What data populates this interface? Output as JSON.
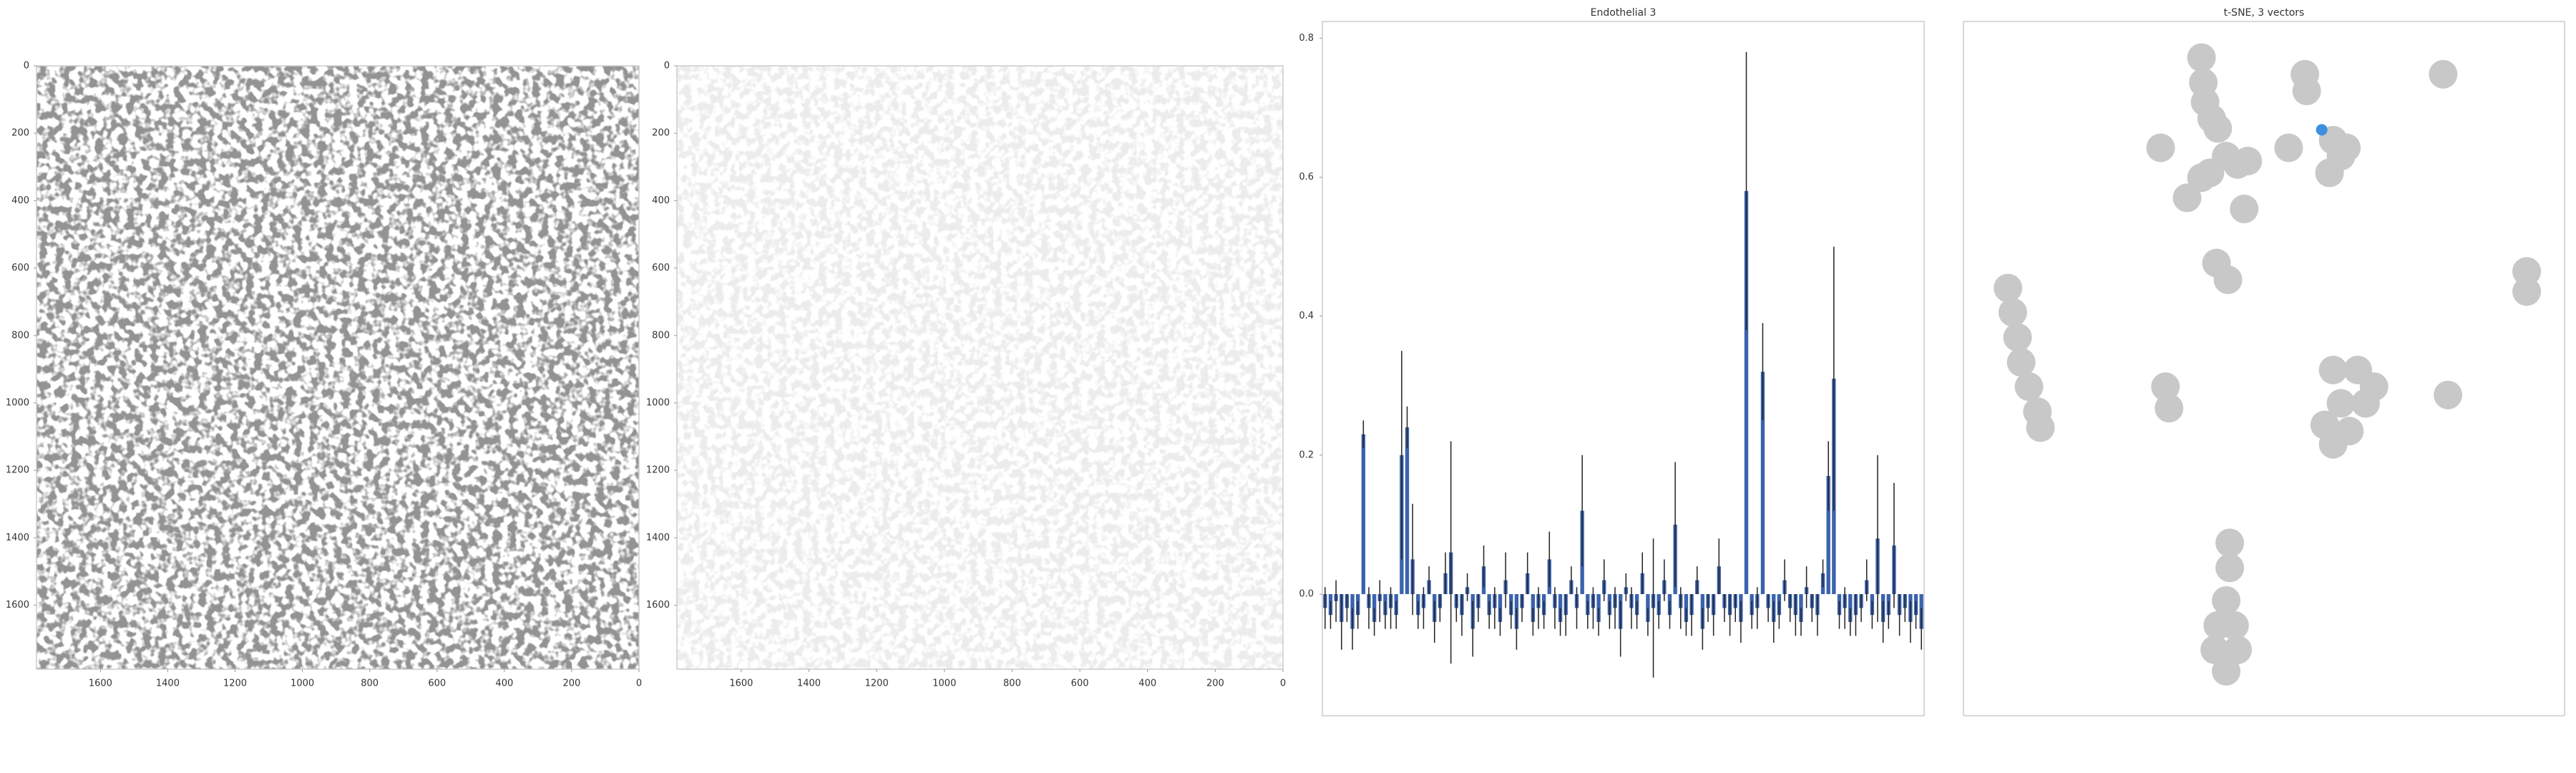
{
  "chart_data": [
    {
      "type": "image",
      "xlim": [
        1790,
        0
      ],
      "ylim": [
        1790,
        0
      ],
      "xticks": [
        1600,
        1400,
        1200,
        1000,
        800,
        600,
        400,
        200,
        0
      ],
      "yticks": [
        0,
        200,
        400,
        600,
        800,
        1000,
        1200,
        1400,
        1600
      ],
      "color": "#4a4a4a"
    },
    {
      "type": "image",
      "xlim": [
        1790,
        0
      ],
      "ylim": [
        1790,
        0
      ],
      "xticks": [
        1600,
        1400,
        1200,
        1000,
        800,
        600,
        400,
        200,
        0
      ],
      "yticks": [
        0,
        200,
        400,
        600,
        800,
        1000,
        1200,
        1400,
        1600
      ],
      "color": "#d6d6d6"
    },
    {
      "type": "bar",
      "title": "Endothelial 3",
      "categories": [
        null,
        null,
        null,
        null,
        null,
        null,
        null,
        null,
        null,
        null,
        null,
        null,
        null,
        null,
        null,
        null,
        null,
        null,
        null,
        null,
        null,
        null,
        null,
        null,
        null,
        null,
        null,
        null,
        null,
        null,
        null,
        null,
        null,
        null,
        null,
        null,
        null,
        null,
        null,
        null,
        null,
        null,
        null,
        null,
        null,
        null,
        null,
        null,
        null,
        null,
        null,
        null,
        null,
        null,
        null,
        null,
        null,
        null,
        null,
        null,
        null,
        null,
        null,
        null,
        null,
        null,
        null,
        null,
        null,
        null,
        null,
        null,
        null,
        null,
        null,
        null,
        null,
        null,
        null,
        null,
        null,
        null,
        null,
        null,
        null,
        null,
        null,
        null,
        null,
        null,
        null,
        null,
        null,
        null,
        null,
        null,
        null,
        null,
        null,
        null,
        null,
        null,
        null,
        null,
        null,
        null,
        null,
        null,
        null,
        null
      ],
      "values": [
        -0.02,
        -0.03,
        -0.01,
        -0.04,
        -0.02,
        -0.05,
        -0.03,
        0.23,
        -0.02,
        -0.04,
        -0.01,
        -0.03,
        -0.02,
        -0.03,
        0.2,
        0.24,
        0.05,
        -0.03,
        -0.02,
        0.02,
        -0.04,
        -0.02,
        0.03,
        0.06,
        -0.02,
        -0.03,
        0.01,
        -0.05,
        -0.02,
        0.04,
        -0.03,
        -0.02,
        -0.04,
        0.02,
        -0.03,
        -0.05,
        -0.02,
        0.03,
        -0.04,
        -0.02,
        -0.03,
        0.05,
        -0.02,
        -0.04,
        -0.03,
        0.02,
        -0.02,
        0.12,
        -0.03,
        -0.02,
        -0.04,
        0.02,
        -0.03,
        -0.02,
        -0.05,
        0.01,
        -0.02,
        -0.03,
        0.03,
        -0.04,
        -0.02,
        -0.03,
        0.02,
        -0.03,
        0.1,
        -0.02,
        -0.04,
        -0.03,
        0.02,
        -0.05,
        -0.02,
        -0.03,
        0.04,
        -0.02,
        -0.03,
        -0.02,
        -0.04,
        0.58,
        -0.03,
        -0.02,
        0.32,
        -0.02,
        -0.04,
        -0.03,
        0.02,
        -0.02,
        -0.03,
        -0.04,
        0.01,
        -0.02,
        -0.03,
        0.03,
        0.17,
        0.31,
        -0.03,
        -0.02,
        -0.04,
        -0.03,
        -0.02,
        0.02,
        -0.03,
        0.08,
        -0.04,
        -0.03,
        0.07,
        -0.03,
        -0.02,
        -0.04,
        -0.03,
        -0.05
      ],
      "errors": [
        0.03,
        0.02,
        0.03,
        0.04,
        0.02,
        0.03,
        0.02,
        0.02,
        0.03,
        0.02,
        0.03,
        0.02,
        0.03,
        0.02,
        0.15,
        0.03,
        0.08,
        0.02,
        0.03,
        0.02,
        0.03,
        0.02,
        0.03,
        0.16,
        0.02,
        0.03,
        0.02,
        0.04,
        0.02,
        0.03,
        0.02,
        0.03,
        0.02,
        0.04,
        0.02,
        0.03,
        0.02,
        0.03,
        0.02,
        0.03,
        0.02,
        0.04,
        0.03,
        0.02,
        0.03,
        0.02,
        0.03,
        0.08,
        0.02,
        0.03,
        0.02,
        0.03,
        0.02,
        0.03,
        0.04,
        0.02,
        0.03,
        0.02,
        0.03,
        0.02,
        0.1,
        0.02,
        0.03,
        0.02,
        0.09,
        0.03,
        0.02,
        0.03,
        0.02,
        0.03,
        0.02,
        0.03,
        0.04,
        0.02,
        0.03,
        0.02,
        0.03,
        0.2,
        0.02,
        0.03,
        0.07,
        0.02,
        0.03,
        0.02,
        0.03,
        0.02,
        0.03,
        0.02,
        0.03,
        0.02,
        0.03,
        0.02,
        0.05,
        0.19,
        0.02,
        0.03,
        0.02,
        0.03,
        0.02,
        0.03,
        0.02,
        0.12,
        0.03,
        0.02,
        0.09,
        0.03,
        0.02,
        0.03,
        0.02,
        0.03
      ],
      "color": "#3b62ad",
      "error_color": "#222222",
      "ylim": [
        -0.175,
        0.824
      ],
      "yticks": [
        {
          "value": 0,
          "label": "0.0"
        },
        0.2,
        0.4,
        0.6,
        0.8
      ]
    },
    {
      "type": "scatter",
      "title": "t-SNE, 3 vectors",
      "xlim": [
        0,
        100
      ],
      "ylim": [
        0,
        100
      ],
      "series": [
        {
          "color": "#c8c8c8",
          "marker_size": 20,
          "x": [
            39.6,
            39.9,
            40.2,
            56.8,
            57.1,
            79.8,
            41.3,
            42.3,
            32.8,
            43.7,
            45.6,
            47.3,
            41.0,
            39.6,
            54.1,
            61.5,
            62.8,
            60.9,
            63.7,
            37.2,
            46.7,
            42.1,
            44.0,
            93.7,
            93.7,
            7.4,
            8.2,
            9.0,
            9.6,
            10.9,
            12.3,
            12.8,
            33.6,
            34.2,
            61.5,
            65.6,
            68.3,
            62.8,
            66.9,
            60.1,
            64.2,
            61.5,
            80.6,
            44.3,
            44.3,
            43.7,
            42.3,
            45.1,
            41.8,
            45.6,
            43.7
          ],
          "y": [
            94.8,
            91.2,
            88.4,
            92.4,
            90.0,
            92.4,
            86.0,
            84.6,
            81.8,
            80.6,
            79.4,
            79.9,
            78.2,
            77.5,
            81.8,
            82.9,
            80.6,
            78.2,
            81.8,
            74.6,
            73.0,
            65.2,
            62.8,
            64.0,
            61.1,
            61.6,
            58.1,
            54.5,
            50.9,
            47.4,
            43.8,
            41.5,
            47.4,
            44.3,
            49.8,
            49.8,
            47.4,
            45.0,
            45.0,
            41.9,
            41.0,
            39.1,
            46.2,
            24.9,
            21.3,
            16.6,
            13.0,
            13.0,
            9.5,
            9.5,
            6.4
          ]
        },
        {
          "color": "#3d8fe0",
          "marker_size": 8,
          "x": [
            59.6
          ],
          "y": [
            84.4
          ]
        }
      ]
    }
  ]
}
